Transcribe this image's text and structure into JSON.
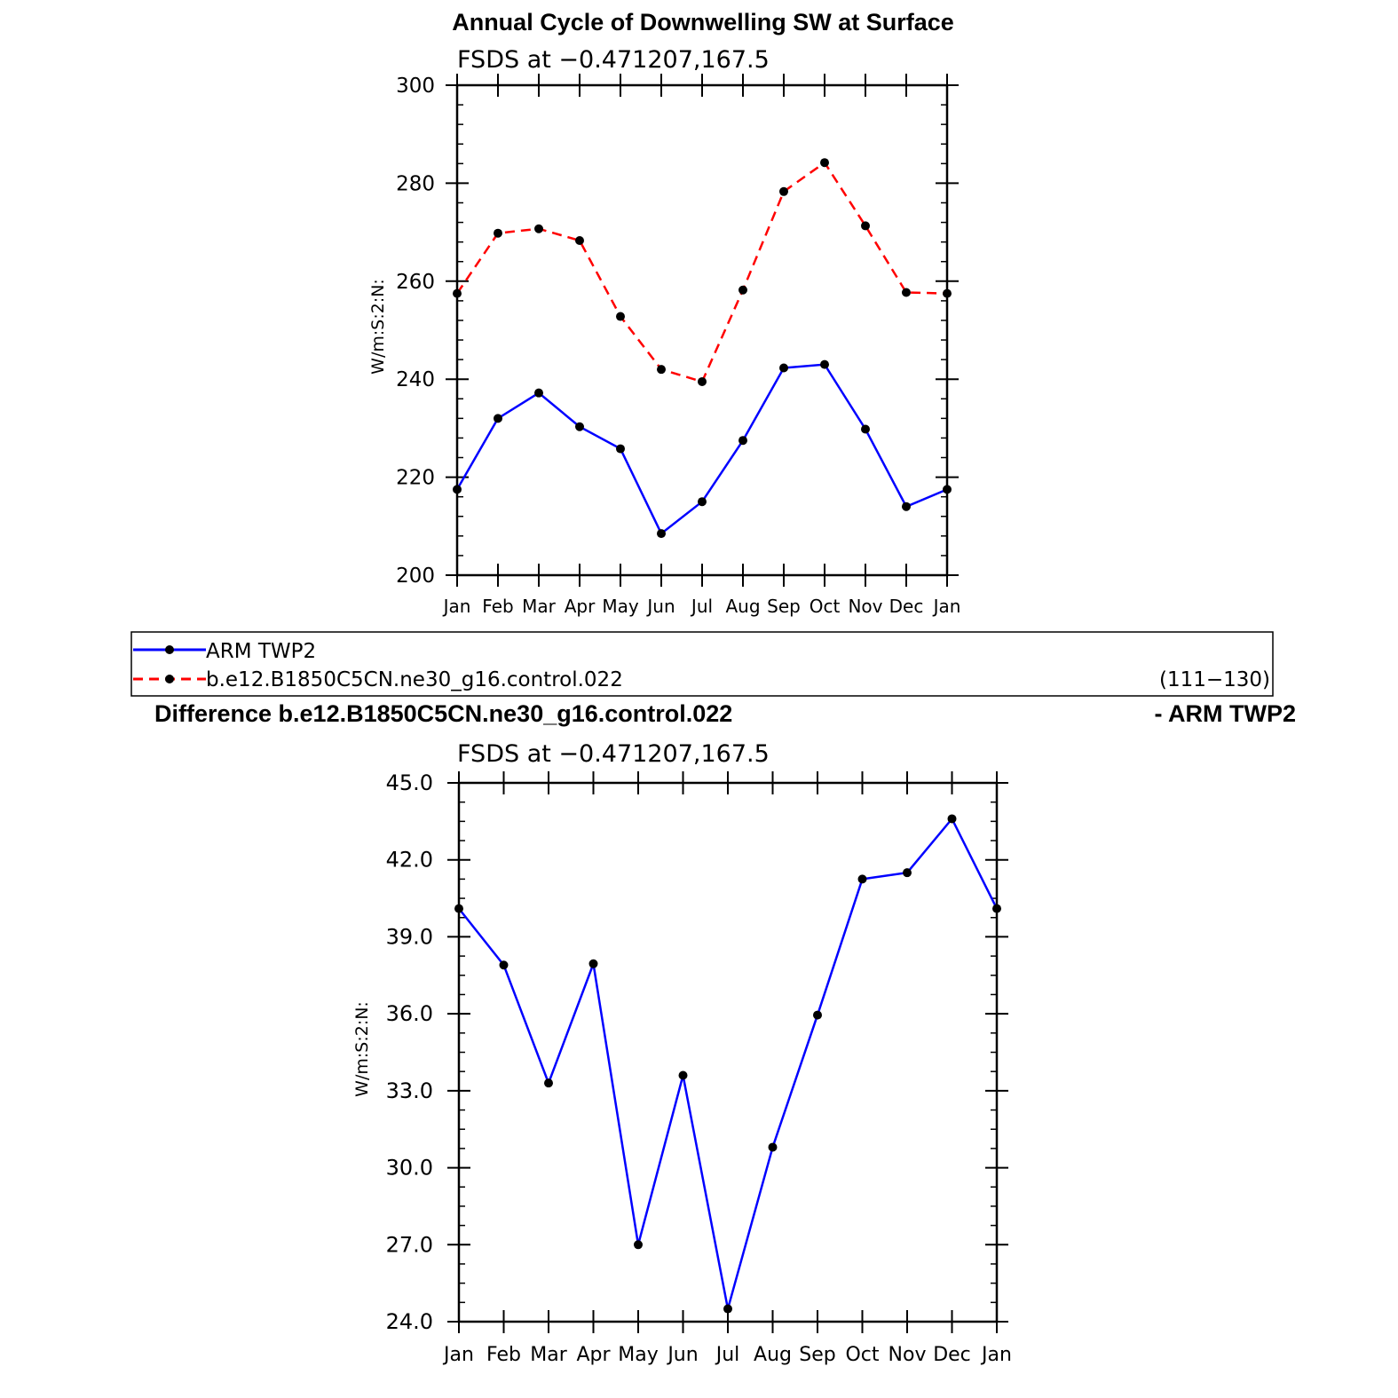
{
  "chart_data": [
    {
      "type": "line",
      "title": "Annual Cycle of Downwelling SW at Surface",
      "subtitle": "FSDS at −0.471207,167.5",
      "xlabel": "",
      "ylabel": "W/m:S:2:N:",
      "categories": [
        "Jan",
        "Feb",
        "Mar",
        "Apr",
        "May",
        "Jun",
        "Jul",
        "Aug",
        "Sep",
        "Oct",
        "Nov",
        "Dec",
        "Jan"
      ],
      "ylim": [
        200,
        300
      ],
      "yticks": [
        "200",
        "220",
        "240",
        "260",
        "280",
        "300"
      ],
      "grid": false,
      "series": [
        {
          "name": "ARM TWP2",
          "color": "#0000ff",
          "dash": "solid",
          "values": [
            217.5,
            232.0,
            237.2,
            230.3,
            225.8,
            208.5,
            215.0,
            227.5,
            242.3,
            243.0,
            229.8,
            214.0,
            217.5
          ]
        },
        {
          "name": "b.e12.B1850C5CN.ne30_g16.control.022",
          "color": "#ff0000",
          "dash": "dashed",
          "values": [
            257.5,
            269.8,
            270.7,
            268.3,
            252.8,
            242.0,
            239.5,
            258.2,
            278.3,
            284.2,
            271.3,
            257.7,
            257.5
          ]
        }
      ]
    },
    {
      "type": "line",
      "title": "Difference b.e12.B1850C5CN.ne30_g16.control.022",
      "title_right": "- ARM TWP2",
      "subtitle": "FSDS at −0.471207,167.5",
      "xlabel": "",
      "ylabel": "W/m:S:2:N:",
      "categories": [
        "Jan",
        "Feb",
        "Mar",
        "Apr",
        "May",
        "Jun",
        "Jul",
        "Aug",
        "Sep",
        "Oct",
        "Nov",
        "Dec",
        "Jan"
      ],
      "ylim": [
        24,
        45
      ],
      "yticks": [
        "24.0",
        "27.0",
        "30.0",
        "33.0",
        "36.0",
        "39.0",
        "42.0",
        "45.0"
      ],
      "grid": false,
      "series": [
        {
          "color": "#0000ff",
          "dash": "solid",
          "values": [
            40.1,
            37.9,
            33.3,
            37.95,
            27.0,
            33.6,
            24.5,
            30.8,
            35.95,
            41.25,
            41.5,
            43.6,
            40.1
          ]
        }
      ]
    }
  ],
  "legend": {
    "placement": "between-panels",
    "period": "(111−130)"
  }
}
